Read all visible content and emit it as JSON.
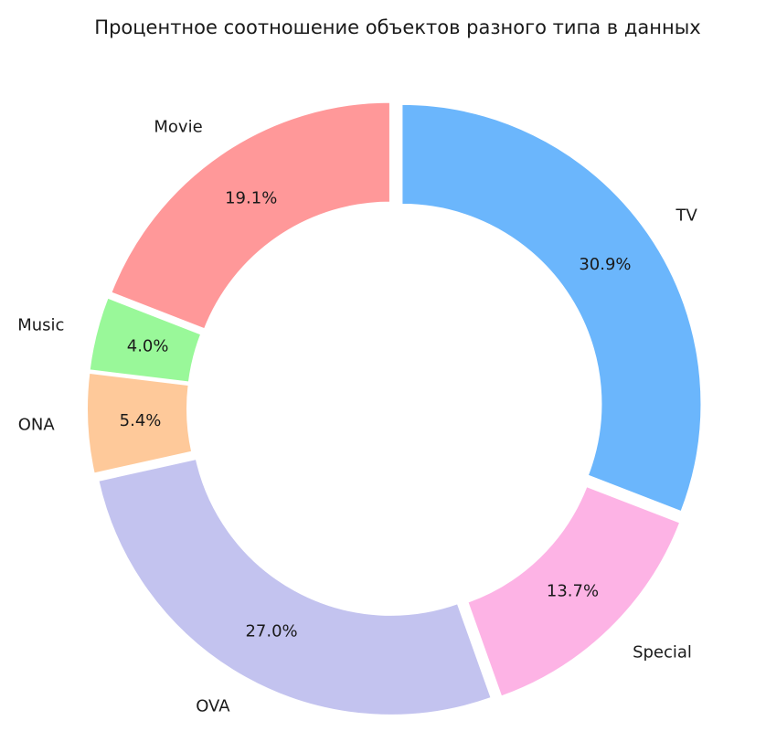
{
  "chart_data": {
    "type": "pie",
    "title": "Процентное соотношение объектов разного типа в данных",
    "donut": true,
    "slices": [
      {
        "label": "TV",
        "value": 30.9,
        "pct_text": "30.9%",
        "color": "#6bb6fc"
      },
      {
        "label": "Special",
        "value": 13.7,
        "pct_text": "13.7%",
        "color": "#fdb3e5"
      },
      {
        "label": "OVA",
        "value": 27.0,
        "pct_text": "27.0%",
        "color": "#c3c3ef"
      },
      {
        "label": "ONA",
        "value": 5.4,
        "pct_text": "5.4%",
        "color": "#fec99a"
      },
      {
        "label": "Music",
        "value": 4.0,
        "pct_text": "4.0%",
        "color": "#99f899"
      },
      {
        "label": "Movie",
        "value": 19.1,
        "pct_text": "19.1%",
        "color": "#ff9899"
      }
    ]
  }
}
